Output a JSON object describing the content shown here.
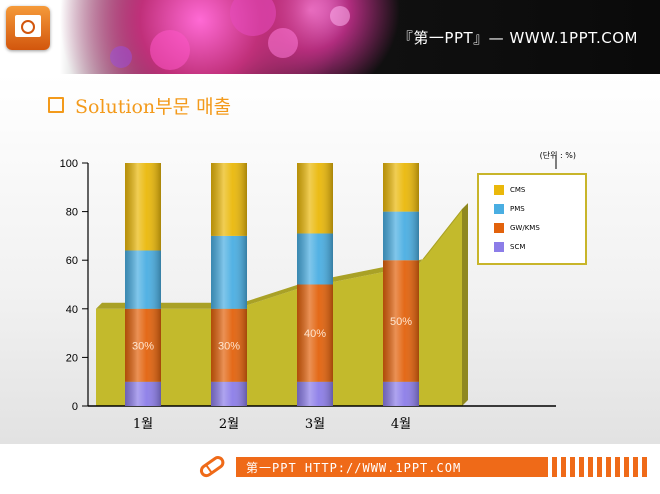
{
  "header": {
    "brand": "『第一PPT』— WWW.1PPT.COM"
  },
  "title": "Solution부문 매출",
  "footer": {
    "text": "第一PPT HTTP://WWW.1PPT.COM"
  },
  "chart_data": {
    "type": "bar",
    "stacked": true,
    "categories": [
      "1월",
      "2월",
      "3월",
      "4월"
    ],
    "series": [
      {
        "name": "SCM",
        "values": [
          10,
          10,
          10,
          10
        ],
        "color": "#8c7de8"
      },
      {
        "name": "GW/KMS",
        "values": [
          30,
          30,
          40,
          50
        ],
        "color": "#e2620c"
      },
      {
        "name": "PMS",
        "values": [
          24,
          30,
          21,
          20
        ],
        "color": "#4aaee2"
      },
      {
        "name": "CMS",
        "values": [
          36,
          30,
          29,
          20
        ],
        "color": "#eab80a"
      }
    ],
    "data_labels": [
      "30%",
      "30%",
      "40%",
      "50%"
    ],
    "background_area": {
      "values": [
        40,
        40,
        48,
        58
      ],
      "end": 81,
      "color": "#c3ba2c"
    },
    "y_ticks": [
      0,
      20,
      40,
      60,
      80,
      100
    ],
    "ylim": [
      0,
      100
    ],
    "unit_label": "(단위 : %)",
    "legend_order": [
      "CMS",
      "PMS",
      "GW/KMS",
      "SCM"
    ],
    "legend_position": "top-right",
    "grid": false
  }
}
